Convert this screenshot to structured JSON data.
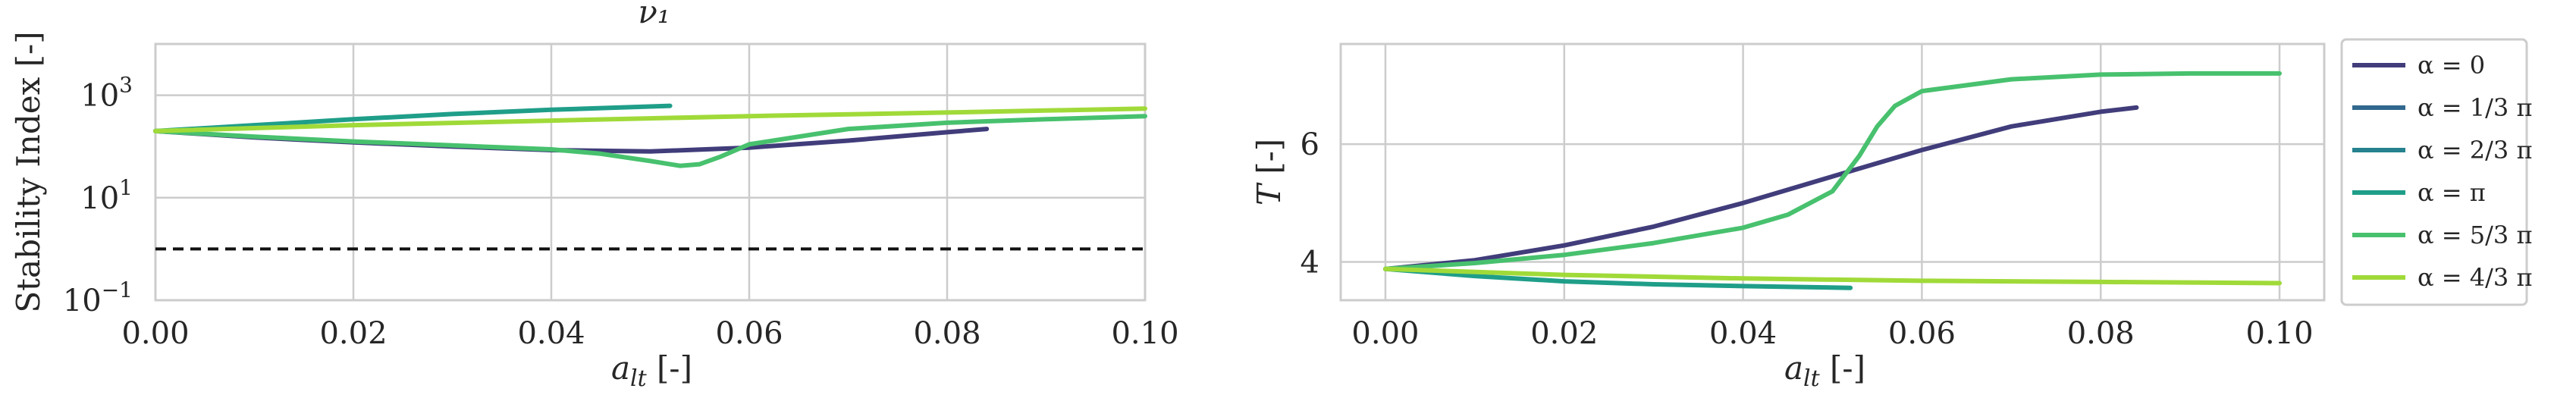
{
  "chart_data": [
    {
      "type": "line",
      "title": "ν₁",
      "xlabel": "a_lt [-]",
      "ylabel": "Stability Index [-]",
      "xlim": [
        0.0,
        0.1
      ],
      "ylim": [
        0.1,
        10000
      ],
      "yscale": "log",
      "grid": true,
      "x_ticks": [
        "0.00",
        "0.02",
        "0.04",
        "0.06",
        "0.08",
        "0.10"
      ],
      "y_ticks": [
        {
          "value": 0.1,
          "base": "10",
          "exp": "−1"
        },
        {
          "value": 10,
          "base": "10",
          "exp": "1"
        },
        {
          "value": 1000,
          "base": "10",
          "exp": "3"
        }
      ],
      "reference_line": {
        "y": 1,
        "style": "dashed",
        "color": "#111111"
      },
      "series": [
        {
          "name": "α = 0",
          "color": "#413d7b",
          "x": [
            0,
            0.01,
            0.02,
            0.03,
            0.04,
            0.05,
            0.06,
            0.07,
            0.08,
            0.084
          ],
          "y": [
            200,
            150,
            120,
            100,
            85,
            80,
            95,
            130,
            190,
            220
          ]
        },
        {
          "name": "α = π",
          "color": "#1f9e89",
          "x": [
            0,
            0.01,
            0.02,
            0.03,
            0.04,
            0.052
          ],
          "y": [
            200,
            260,
            340,
            430,
            520,
            620
          ]
        },
        {
          "name": "α = 5/3 π",
          "color": "#48c16e",
          "x": [
            0,
            0.01,
            0.02,
            0.03,
            0.04,
            0.045,
            0.05,
            0.053,
            0.055,
            0.057,
            0.06,
            0.07,
            0.08,
            0.09,
            0.1
          ],
          "y": [
            200,
            155,
            125,
            105,
            88,
            72,
            52,
            42,
            45,
            62,
            110,
            220,
            290,
            340,
            390
          ]
        },
        {
          "name": "α = 4/3 π",
          "color": "#a0da39",
          "x": [
            0,
            0.02,
            0.04,
            0.06,
            0.08,
            0.1
          ],
          "y": [
            200,
            260,
            320,
            390,
            460,
            550
          ]
        }
      ]
    },
    {
      "type": "line",
      "xlabel": "a_lt [-]",
      "ylabel": "T [-]",
      "xlim": [
        -0.005,
        0.105
      ],
      "ylim": [
        3.35,
        7.7
      ],
      "grid": true,
      "x_ticks": [
        "0.00",
        "0.02",
        "0.04",
        "0.06",
        "0.08",
        "0.10"
      ],
      "y_ticks": [
        "4",
        "6"
      ],
      "legend_position": "outside-right",
      "legend": [
        {
          "label": "α = 0",
          "color": "#413d7b"
        },
        {
          "label": "α = 1/3 π",
          "color": "#31688e"
        },
        {
          "label": "α = 2/3 π",
          "color": "#26828e"
        },
        {
          "label": "α = π",
          "color": "#1f9e89"
        },
        {
          "label": "α = 5/3 π",
          "color": "#48c16e"
        },
        {
          "label": "α = 4/3 π",
          "color": "#a0da39"
        }
      ],
      "series": [
        {
          "name": "α = 0",
          "color": "#413d7b",
          "x": [
            0,
            0.01,
            0.02,
            0.03,
            0.04,
            0.05,
            0.06,
            0.07,
            0.08,
            0.084
          ],
          "y": [
            3.88,
            4.03,
            4.28,
            4.6,
            5.0,
            5.45,
            5.9,
            6.3,
            6.55,
            6.62
          ]
        },
        {
          "name": "α = π",
          "color": "#1f9e89",
          "x": [
            0,
            0.01,
            0.02,
            0.03,
            0.04,
            0.052
          ],
          "y": [
            3.88,
            3.76,
            3.67,
            3.62,
            3.59,
            3.56
          ]
        },
        {
          "name": "α = 5/3 π",
          "color": "#48c16e",
          "x": [
            0,
            0.01,
            0.02,
            0.03,
            0.04,
            0.045,
            0.05,
            0.053,
            0.055,
            0.057,
            0.06,
            0.07,
            0.08,
            0.09,
            0.1
          ],
          "y": [
            3.88,
            3.98,
            4.12,
            4.32,
            4.58,
            4.8,
            5.2,
            5.8,
            6.3,
            6.65,
            6.9,
            7.1,
            7.18,
            7.2,
            7.2
          ]
        },
        {
          "name": "α = 4/3 π",
          "color": "#a0da39",
          "x": [
            0,
            0.02,
            0.04,
            0.06,
            0.08,
            0.1
          ],
          "y": [
            3.88,
            3.78,
            3.72,
            3.68,
            3.66,
            3.64
          ]
        }
      ]
    }
  ]
}
